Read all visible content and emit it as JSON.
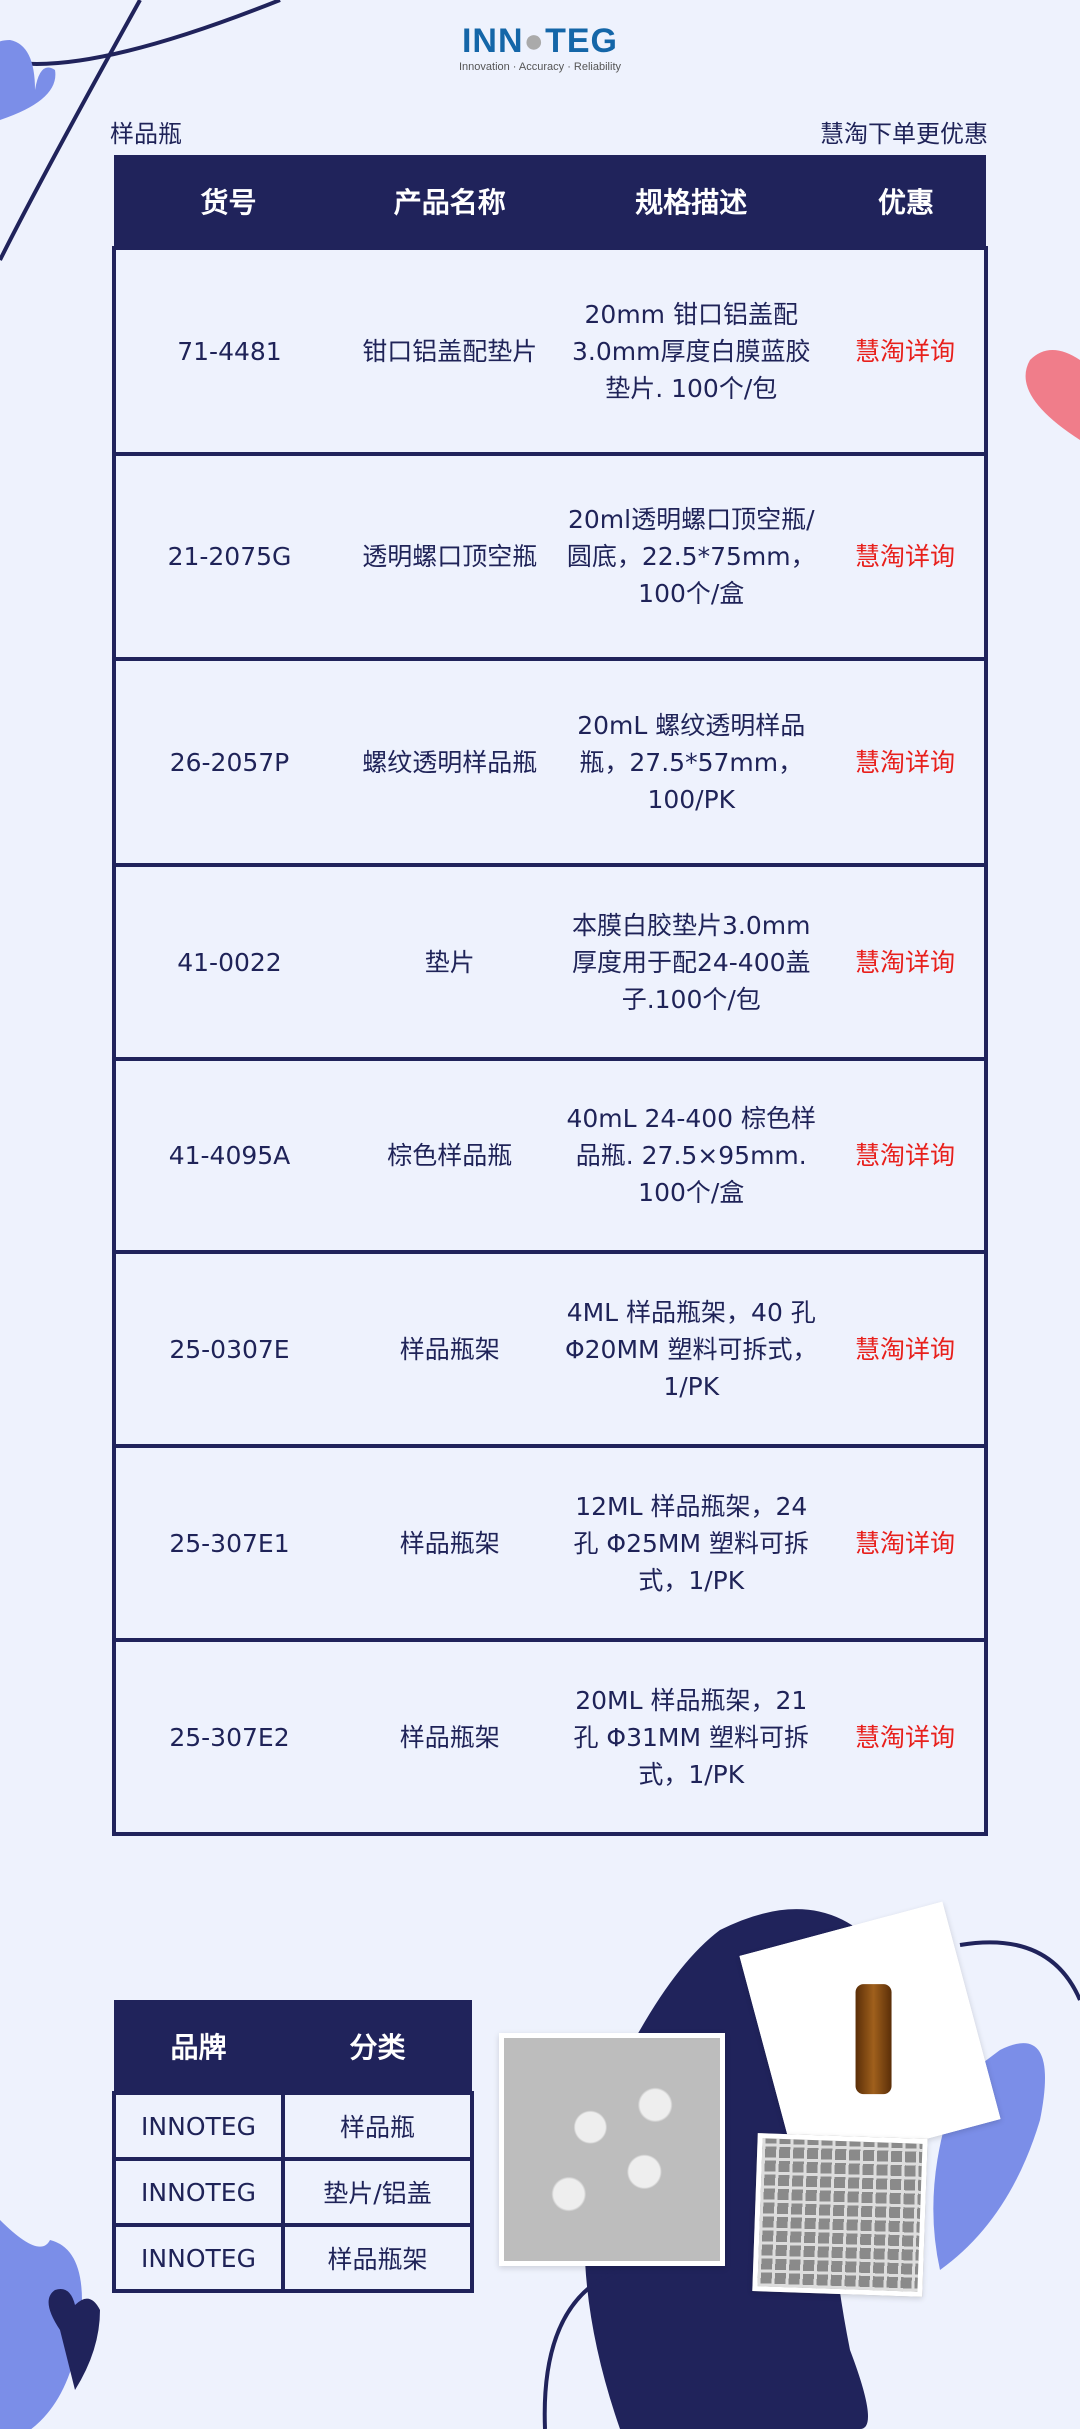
{
  "logo": {
    "name": "INNOTEG",
    "tagline": "Innovation · Accuracy · Reliability"
  },
  "header": {
    "left": "样品瓶",
    "right": "慧淘下单更优惠"
  },
  "colors": {
    "navy": "#20235b",
    "accent_red": "#e8201c",
    "background": "#eef2fd",
    "heart_blue": "#7b8ee8",
    "heart_pink": "#f07d8a"
  },
  "table": {
    "headers": [
      "货号",
      "产品名称",
      "规格描述",
      "优惠"
    ],
    "rows": [
      {
        "sku": "71-4481",
        "name": "钳口铝盖配垫片",
        "spec": "20mm 钳口铝盖配3.0mm厚度白膜蓝胶垫片. 100个/包",
        "offer": "慧淘详询"
      },
      {
        "sku": "21-2075G",
        "name": "透明螺口顶空瓶",
        "spec": "20ml透明螺口顶空瓶/圆底，22.5*75mm，100个/盒",
        "offer": "慧淘详询"
      },
      {
        "sku": "26-2057P",
        "name": "螺纹透明样品瓶",
        "spec": "20mL 螺纹透明样品瓶，27.5*57mm，100/PK",
        "offer": "慧淘详询"
      },
      {
        "sku": "41-0022",
        "name": "垫片",
        "spec": "本膜白胶垫片3.0mm厚度用于配24-400盖子.100个/包",
        "offer": "慧淘详询"
      },
      {
        "sku": "41-4095A",
        "name": "棕色样品瓶",
        "spec": "40mL 24-400 棕色样品瓶. 27.5×95mm. 100个/盒",
        "offer": "慧淘详询"
      },
      {
        "sku": "25-0307E",
        "name": "样品瓶架",
        "spec": "4ML 样品瓶架，40 孔 Φ20MM 塑料可拆式，1/PK",
        "offer": "慧淘详询"
      },
      {
        "sku": "25-307E1",
        "name": "样品瓶架",
        "spec": "12ML 样品瓶架，24 孔 Φ25MM 塑料可拆式，1/PK",
        "offer": "慧淘详询"
      },
      {
        "sku": "25-307E2",
        "name": "样品瓶架",
        "spec": "20ML 样品瓶架，21 孔 Φ31MM 塑料可拆式，1/PK",
        "offer": "慧淘详询"
      }
    ]
  },
  "brand_table": {
    "headers": [
      "品牌",
      "分类"
    ],
    "rows": [
      {
        "brand": "INNOTEG",
        "category": "样品瓶"
      },
      {
        "brand": "INNOTEG",
        "category": "垫片/铝盖"
      },
      {
        "brand": "INNOTEG",
        "category": "样品瓶架"
      }
    ]
  }
}
